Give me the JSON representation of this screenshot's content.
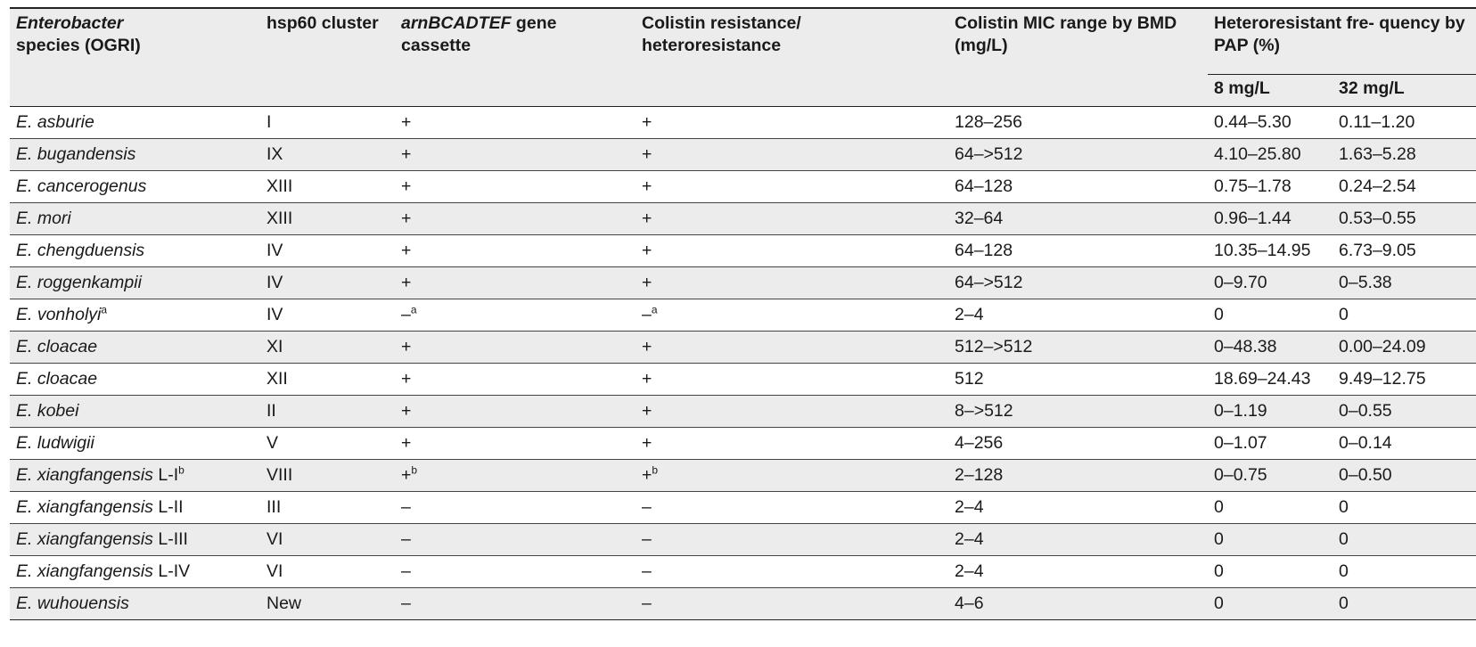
{
  "header": {
    "col1_italic": "Enterobacter",
    "col1_rest": "species (OGRI)",
    "col2": "hsp60 cluster",
    "col3_italic": "arnBCADTEF",
    "col3_rest": " gene cassette",
    "col4": "Colistin resistance/ heteroresistance",
    "col5": "Colistin MIC range by BMD (mg/L)",
    "col6": "Heteroresistant fre- quency by PAP (%)",
    "sub1": "8 mg/L",
    "sub2": "32 mg/L"
  },
  "rows": [
    {
      "species": "E. asburie",
      "suffix": "",
      "sup": "",
      "cluster": "I",
      "arn": "+",
      "arn_sup": "",
      "res": "+",
      "res_sup": "",
      "mic": "128–256",
      "f8": "0.44–5.30",
      "f32": "0.11–1.20"
    },
    {
      "species": "E. bugandensis",
      "suffix": "",
      "sup": "",
      "cluster": "IX",
      "arn": "+",
      "arn_sup": "",
      "res": "+",
      "res_sup": "",
      "mic": "64–>512",
      "f8": "4.10–25.80",
      "f32": "1.63–5.28"
    },
    {
      "species": "E. cancerogenus",
      "suffix": "",
      "sup": "",
      "cluster": "XIII",
      "arn": "+",
      "arn_sup": "",
      "res": "+",
      "res_sup": "",
      "mic": "64–128",
      "f8": "0.75–1.78",
      "f32": "0.24–2.54"
    },
    {
      "species": "E. mori",
      "suffix": "",
      "sup": "",
      "cluster": "XIII",
      "arn": "+",
      "arn_sup": "",
      "res": "+",
      "res_sup": "",
      "mic": "32–64",
      "f8": "0.96–1.44",
      "f32": "0.53–0.55"
    },
    {
      "species": "E. chengduensis",
      "suffix": "",
      "sup": "",
      "cluster": "IV",
      "arn": "+",
      "arn_sup": "",
      "res": "+",
      "res_sup": "",
      "mic": "64–128",
      "f8": "10.35–14.95",
      "f32": "6.73–9.05"
    },
    {
      "species": "E. roggenkampii",
      "suffix": "",
      "sup": "",
      "cluster": "IV",
      "arn": "+",
      "arn_sup": "",
      "res": "+",
      "res_sup": "",
      "mic": "64–>512",
      "f8": "0–9.70",
      "f32": "0–5.38"
    },
    {
      "species": "E. vonholyi",
      "suffix": "",
      "sup": "a",
      "cluster": "IV",
      "arn": "–",
      "arn_sup": "a",
      "res": "–",
      "res_sup": "a",
      "mic": "2–4",
      "f8": "0",
      "f32": "0"
    },
    {
      "species": "E. cloacae",
      "suffix": "",
      "sup": "",
      "cluster": "XI",
      "arn": "+",
      "arn_sup": "",
      "res": "+",
      "res_sup": "",
      "mic": "512–>512",
      "f8": "0–48.38",
      "f32": "0.00–24.09"
    },
    {
      "species": "E. cloacae",
      "suffix": "",
      "sup": "",
      "cluster": "XII",
      "arn": "+",
      "arn_sup": "",
      "res": "+",
      "res_sup": "",
      "mic": "512",
      "f8": "18.69–24.43",
      "f32": "9.49–12.75"
    },
    {
      "species": "E. kobei",
      "suffix": "",
      "sup": "",
      "cluster": "II",
      "arn": "+",
      "arn_sup": "",
      "res": "+",
      "res_sup": "",
      "mic": "8–>512",
      "f8": "0–1.19",
      "f32": "0–0.55"
    },
    {
      "species": "E. ludwigii",
      "suffix": "",
      "sup": "",
      "cluster": "V",
      "arn": "+",
      "arn_sup": "",
      "res": "+",
      "res_sup": "",
      "mic": "4–256",
      "f8": "0–1.07",
      "f32": "0–0.14"
    },
    {
      "species": "E. xiangfangensis",
      "suffix": " L-I",
      "sup": "b",
      "cluster": "VIII",
      "arn": "+",
      "arn_sup": "b",
      "res": "+",
      "res_sup": "b",
      "mic": "2–128",
      "f8": "0–0.75",
      "f32": "0–0.50"
    },
    {
      "species": "E. xiangfangensis",
      "suffix": " L-II",
      "sup": "",
      "cluster": "III",
      "arn": "–",
      "arn_sup": "",
      "res": "–",
      "res_sup": "",
      "mic": "2–4",
      "f8": "0",
      "f32": "0"
    },
    {
      "species": "E. xiangfangensis",
      "suffix": " L-III",
      "sup": "",
      "cluster": "VI",
      "arn": "–",
      "arn_sup": "",
      "res": "–",
      "res_sup": "",
      "mic": "2–4",
      "f8": "0",
      "f32": "0"
    },
    {
      "species": "E. xiangfangensis",
      "suffix": " L-IV",
      "sup": "",
      "cluster": "VI",
      "arn": "–",
      "arn_sup": "",
      "res": "–",
      "res_sup": "",
      "mic": "2–4",
      "f8": "0",
      "f32": "0"
    },
    {
      "species": "E. wuhouensis",
      "suffix": "",
      "sup": "",
      "cluster": "New",
      "arn": "–",
      "arn_sup": "",
      "res": "–",
      "res_sup": "",
      "mic": "4–6",
      "f8": "0",
      "f32": "0"
    }
  ]
}
